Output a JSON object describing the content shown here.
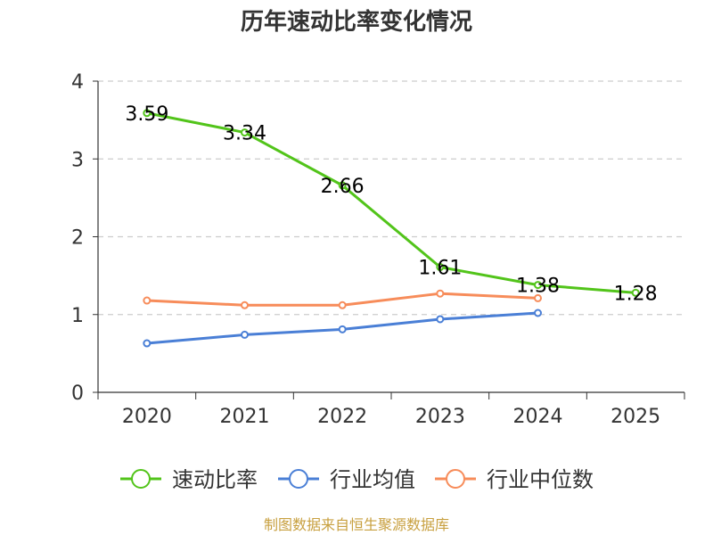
{
  "chart_data": {
    "type": "line",
    "title": "历年速动比率变化情况",
    "categories": [
      "2020",
      "2021",
      "2022",
      "2023",
      "2024",
      "2025"
    ],
    "ylim": [
      0,
      4
    ],
    "yticks": [
      0,
      1,
      2,
      3,
      4
    ],
    "grid": true,
    "legend_position": "bottom",
    "series": [
      {
        "name": "速动比率",
        "color": "#52c41a",
        "values": [
          3.59,
          3.34,
          2.66,
          1.61,
          1.38,
          1.28
        ],
        "show_labels": true
      },
      {
        "name": "行业均值",
        "color": "#4a7fd6",
        "values": [
          0.63,
          0.74,
          0.81,
          0.94,
          1.02,
          null
        ],
        "show_labels": false
      },
      {
        "name": "行业中位数",
        "color": "#f78c5a",
        "values": [
          1.18,
          1.12,
          1.12,
          1.27,
          1.21,
          null
        ],
        "show_labels": false
      }
    ]
  },
  "footer": {
    "source": "制图数据来自恒生聚源数据库"
  }
}
